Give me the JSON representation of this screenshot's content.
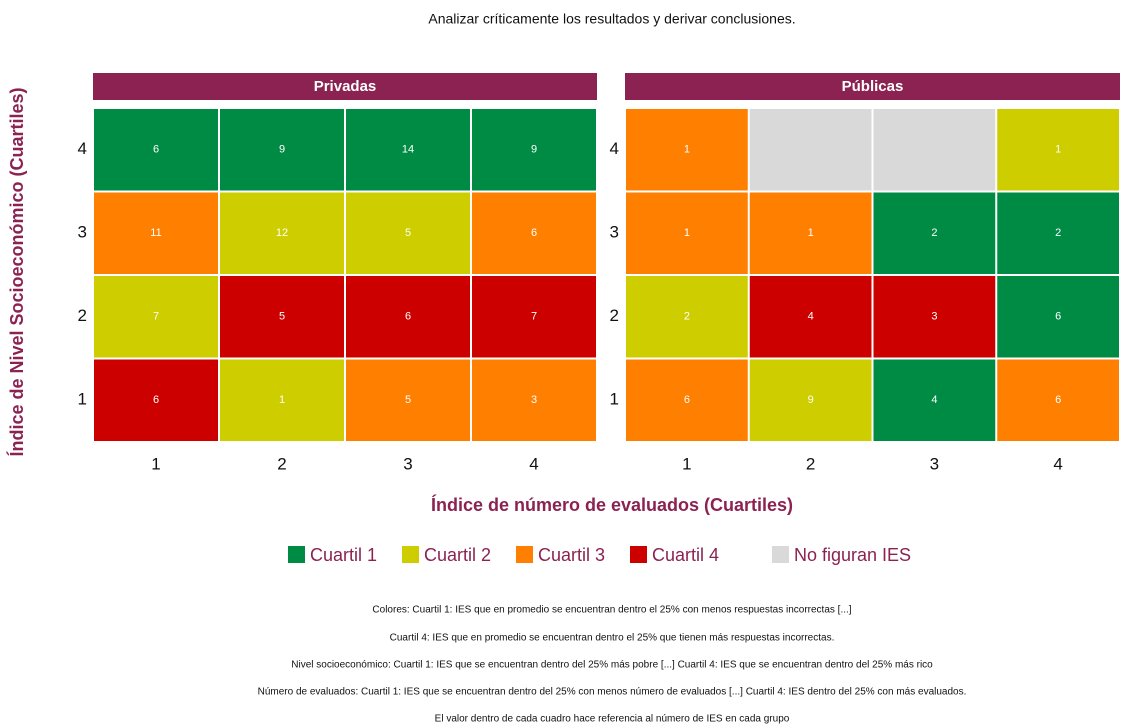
{
  "title": "Analizar críticamente los resultados y derivar conclusiones.",
  "xlabel": "Índice de número de evaluados (Cuartiles)",
  "ylabel": "Índice de Nivel Socioeconómico (Cuartiles)",
  "legend": [
    {
      "name": "Cuartil 1",
      "color": "#008b45"
    },
    {
      "name": "Cuartil 2",
      "color": "#cdcd00"
    },
    {
      "name": "Cuartil 3",
      "color": "#ff7f00"
    },
    {
      "name": "Cuartil 4",
      "color": "#cd0000"
    },
    {
      "name": "No figuran IES",
      "color": "#d9d9d9"
    }
  ],
  "notes": [
    "Colores: Cuartil 1:  IES que en promedio se encuentran dentro el 25% con menos respuestas incorrectas [...]",
    "Cuartil 4: IES que en promedio se encuentran dentro el 25% que tienen más respuestas incorrectas.",
    "Nivel socioeconómico: Cuartil 1: IES que se encuentran dentro del 25% más pobre [...] Cuartil 4: IES que se encuentran dentro del 25% más rico",
    "Número de evaluados: Cuartil 1: IES que se encuentran dentro del 25% con menos número de evaluados [...] Cuartil 4: IES dentro del 25% con más evaluados.",
    "El valor dentro de cada cuadro hace referencia al número de IES en cada grupo"
  ],
  "chart_data": [
    {
      "type": "heatmap",
      "title": "Privadas",
      "x": [
        1,
        2,
        3,
        4
      ],
      "y": [
        4,
        3,
        2,
        1
      ],
      "values": [
        [
          6,
          9,
          14,
          9
        ],
        [
          11,
          12,
          5,
          6
        ],
        [
          7,
          5,
          6,
          7
        ],
        [
          6,
          1,
          5,
          3
        ]
      ],
      "levels": [
        [
          0,
          0,
          0,
          0
        ],
        [
          2,
          1,
          1,
          2
        ],
        [
          1,
          3,
          3,
          3
        ],
        [
          3,
          1,
          2,
          2
        ]
      ]
    },
    {
      "type": "heatmap",
      "title": "Públicas",
      "x": [
        1,
        2,
        3,
        4
      ],
      "y": [
        4,
        3,
        2,
        1
      ],
      "values": [
        [
          1,
          null,
          null,
          1
        ],
        [
          1,
          1,
          2,
          2
        ],
        [
          2,
          4,
          3,
          6
        ],
        [
          6,
          9,
          4,
          6
        ]
      ],
      "levels": [
        [
          2,
          4,
          4,
          1
        ],
        [
          2,
          2,
          0,
          0
        ],
        [
          1,
          3,
          3,
          0
        ],
        [
          2,
          1,
          0,
          2
        ]
      ]
    }
  ]
}
